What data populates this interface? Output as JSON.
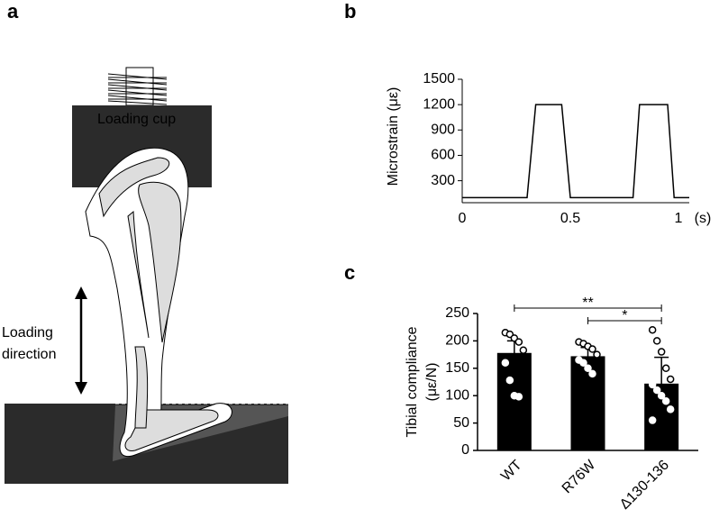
{
  "panels": {
    "a": "a",
    "b": "b",
    "c": "c"
  },
  "diagram": {
    "cup_label": "Loading cup",
    "direction_label": [
      "Loading",
      "direction"
    ]
  },
  "chart_data": [
    {
      "type": "line",
      "x": [
        0,
        0.3,
        0.34,
        0.46,
        0.5,
        0.79,
        0.82,
        0.95,
        0.98,
        1.05
      ],
      "values": [
        100,
        100,
        1200,
        1200,
        100,
        100,
        1200,
        1200,
        100,
        100
      ],
      "color": "#000000",
      "xlim": [
        0,
        1.05
      ],
      "xticks": [
        0,
        0.5,
        1
      ],
      "ylim": [
        40,
        1500
      ],
      "yticks": [
        300,
        600,
        900,
        1200,
        1500
      ],
      "y_label": "Microstrain (με)",
      "x_label": "(s)"
    },
    {
      "type": "bar",
      "categories": [
        "WT",
        "R76W",
        "Δ130-136"
      ],
      "values": [
        178,
        172,
        122
      ],
      "errors": [
        22,
        16,
        48
      ],
      "color": "#000000",
      "points": [
        [
          215,
          212,
          205,
          198,
          183,
          160,
          128,
          100,
          98
        ],
        [
          198,
          195,
          190,
          185,
          175,
          165,
          160,
          150,
          140
        ],
        [
          220,
          200,
          180,
          150,
          130,
          120,
          110,
          100,
          90,
          75,
          55
        ]
      ],
      "ylim": [
        0,
        250
      ],
      "yticks": [
        0,
        50,
        100,
        150,
        200,
        250
      ],
      "y_label": [
        "Tibial compliance",
        "(με/N)"
      ],
      "annotations": [
        "**",
        "*"
      ]
    }
  ]
}
